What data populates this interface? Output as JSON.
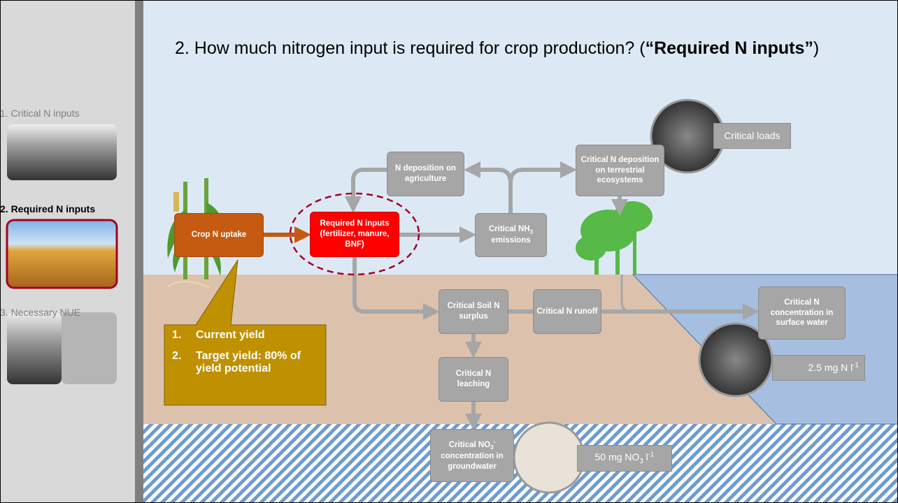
{
  "sidebar": {
    "items": [
      {
        "label": "1. Critical N inputs"
      },
      {
        "label": "2. Required N inputs"
      },
      {
        "label": "3. Necessary NUE"
      }
    ]
  },
  "title": {
    "prefix": "2. How much nitrogen input is required for crop production? (",
    "bold": "“Required N inputs”",
    "suffix": ")"
  },
  "nodes": {
    "crop_uptake": {
      "text": "Crop  N uptake"
    },
    "required": {
      "text": "Required N inputs (fertilizer, manure, BNF)"
    },
    "deposition_agri": {
      "text": "N deposition on agriculture"
    },
    "nh3": {
      "text": "Critical NH",
      "sub": "3",
      "after": " emissions"
    },
    "deposition_terr": {
      "text": "Critical N deposition on terrestrial ecosystems"
    },
    "critical_loads": {
      "text": "Critical loads"
    },
    "soil_surplus": {
      "text": "Critical Soil N surplus"
    },
    "runoff": {
      "text": "Critical N runoff"
    },
    "surface_water": {
      "text": "Critical N concentration in surface water"
    },
    "surface_limit": {
      "text": "2.5 mg N l",
      "sup": "-1"
    },
    "leaching": {
      "text": "Critical N leaching"
    },
    "groundwater": {
      "text": "Critical NO",
      "sub": "3",
      "sup": "-",
      "after": " concentration in groundwater"
    },
    "groundwater_limit": {
      "text": "50 mg NO",
      "sub": "3",
      "after": " l",
      "sup": "-1"
    }
  },
  "callout": {
    "items": [
      {
        "number": "1.",
        "text": "Current yield"
      },
      {
        "number": "2.",
        "text": "Target yield: 80% of yield potential"
      }
    ]
  }
}
